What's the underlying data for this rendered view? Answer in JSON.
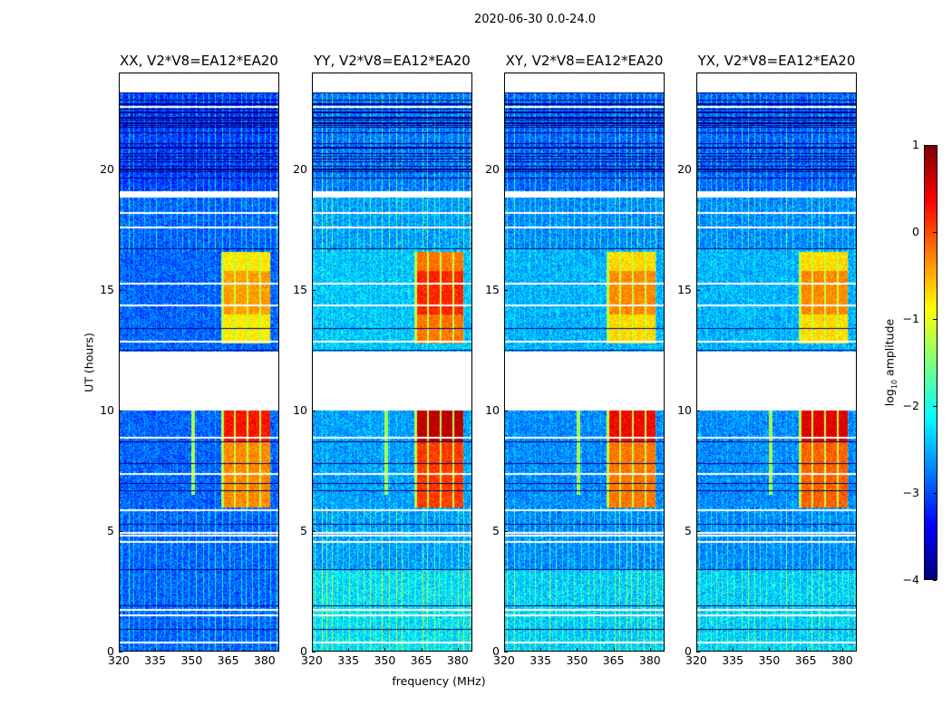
{
  "chart_data": {
    "type": "heatmap",
    "title": "2020-06-30 0.0-24.0",
    "xlabel": "frequency (MHz)",
    "ylabel": "UT (hours)",
    "xlim": [
      320,
      386
    ],
    "ylim": [
      0,
      24
    ],
    "xticks": [
      "320",
      "335",
      "350",
      "365",
      "380"
    ],
    "xtick_values": [
      320,
      335,
      350,
      365,
      380
    ],
    "yticks": [
      "0",
      "5",
      "10",
      "15",
      "20"
    ],
    "ytick_values": [
      0,
      5,
      10,
      15,
      20
    ],
    "colorbar": {
      "label_prefix": "log",
      "label_sub": "10",
      "label_suffix": " amplitude",
      "range": [
        -4,
        1
      ],
      "ticks": [
        "1",
        "0",
        "−1",
        "−2",
        "−3",
        "−4"
      ],
      "tick_values": [
        1,
        0,
        -1,
        -2,
        -3,
        -4
      ],
      "colormap": "jet"
    },
    "panels": [
      {
        "title": "XX, V2*V8=EA12*EA20",
        "background_level": -2.9,
        "rfi_level_late": -0.8,
        "rfi_level_early": 0.3
      },
      {
        "title": "YY, V2*V8=EA12*EA20",
        "background_level": -2.6,
        "rfi_level_late": -0.2,
        "rfi_level_early": 0.7
      },
      {
        "title": "XY, V2*V8=EA12*EA20",
        "background_level": -2.7,
        "rfi_level_late": -0.7,
        "rfi_level_early": 0.4
      },
      {
        "title": "YX, V2*V8=EA12*EA20",
        "background_level": -2.7,
        "rfi_level_late": -0.7,
        "rfi_level_early": 0.5
      }
    ],
    "data_gaps_hours": [
      [
        10.0,
        12.45
      ],
      [
        18.85,
        19.1
      ],
      [
        23.2,
        24.0
      ]
    ],
    "rfi_band_mhz": [
      362,
      382
    ],
    "rfi_time_ranges_hours": [
      [
        12.8,
        16.6
      ],
      [
        6.0,
        10.0
      ]
    ]
  }
}
